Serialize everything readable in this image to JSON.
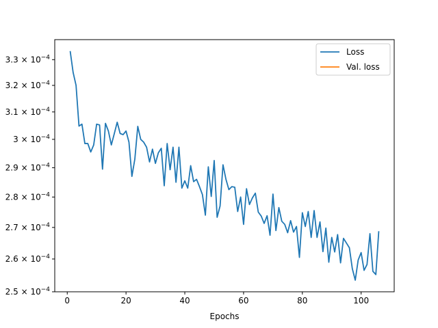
{
  "chart_data": {
    "type": "line",
    "title": "",
    "xlabel": "Epochs",
    "ylabel": "",
    "yscale": "log",
    "xlim": [
      -4.25,
      111.25
    ],
    "ylim": [
      0.00025,
      0.000338
    ],
    "x_ticks": [
      0,
      20,
      40,
      60,
      80,
      100
    ],
    "x_tick_labels": [
      "0",
      "20",
      "40",
      "60",
      "80",
      "100"
    ],
    "y_ticks": [
      0.00025,
      0.00026,
      0.00027,
      0.00028,
      0.00029,
      0.0003,
      0.00031,
      0.00032,
      0.00033
    ],
    "y_tick_labels": [
      {
        "mant": "2.5",
        "exp": "-4"
      },
      {
        "mant": "2.6",
        "exp": "-4"
      },
      {
        "mant": "2.7",
        "exp": "-4"
      },
      {
        "mant": "2.8",
        "exp": "-4"
      },
      {
        "mant": "2.9",
        "exp": "-4"
      },
      {
        "mant": "3",
        "exp": "-4"
      },
      {
        "mant": "3.1",
        "exp": "-4"
      },
      {
        "mant": "3.2",
        "exp": "-4"
      },
      {
        "mant": "3.3",
        "exp": "-4"
      }
    ],
    "grid": false,
    "legend_position": "top-right",
    "series": [
      {
        "name": "Loss",
        "color": "#1f77b4",
        "x": [
          1,
          2,
          3,
          4,
          5,
          6,
          7,
          8,
          9,
          10,
          11,
          12,
          13,
          14,
          15,
          16,
          17,
          18,
          19,
          20,
          21,
          22,
          23,
          24,
          25,
          26,
          27,
          28,
          29,
          30,
          31,
          32,
          33,
          34,
          35,
          36,
          37,
          38,
          39,
          40,
          41,
          42,
          43,
          44,
          45,
          46,
          47,
          48,
          49,
          50,
          51,
          52,
          53,
          54,
          55,
          56,
          57,
          58,
          59,
          60,
          61,
          62,
          63,
          64,
          65,
          66,
          67,
          68,
          69,
          70,
          71,
          72,
          73,
          74,
          75,
          76,
          77,
          78,
          79,
          80,
          81,
          82,
          83,
          84,
          85,
          86,
          87,
          88,
          89,
          90,
          91,
          92,
          93,
          94,
          95,
          96,
          97,
          98,
          99,
          100,
          101,
          102,
          103,
          104,
          105,
          106
        ],
        "values": [
          0.0003334,
          0.000325,
          0.00032,
          0.0003048,
          0.0003055,
          0.0002985,
          0.0002985,
          0.0002955,
          0.000298,
          0.0003055,
          0.0003052,
          0.0002895,
          0.0003058,
          0.000303,
          0.000298,
          0.000302,
          0.0003062,
          0.0003021,
          0.0003017,
          0.000303,
          0.000299,
          0.000287,
          0.000293,
          0.0003047,
          0.0003,
          0.000299,
          0.0002972,
          0.000292,
          0.0002965,
          0.0002915,
          0.0002952,
          0.0002968,
          0.0002838,
          0.0002985,
          0.0002893,
          0.0002972,
          0.000285,
          0.0002972,
          0.000283,
          0.0002855,
          0.000283,
          0.0002907,
          0.0002852,
          0.000286,
          0.0002835,
          0.0002808,
          0.000274,
          0.0002903,
          0.0002802,
          0.0002925,
          0.0002733,
          0.000277,
          0.000291,
          0.000286,
          0.0002825,
          0.0002835,
          0.0002833,
          0.0002752,
          0.00028,
          0.000271,
          0.0002828,
          0.0002775,
          0.0002797,
          0.0002813,
          0.000275,
          0.0002737,
          0.0002713,
          0.0002738,
          0.0002675,
          0.000281,
          0.000269,
          0.0002765,
          0.000272,
          0.000271,
          0.0002683,
          0.0002722,
          0.0002685,
          0.0002703,
          0.0002605,
          0.0002748,
          0.0002703,
          0.0002752,
          0.0002668,
          0.0002755,
          0.0002668,
          0.0002718,
          0.0002623,
          0.0002698,
          0.000259,
          0.0002668,
          0.0002622,
          0.0002677,
          0.0002588,
          0.0002665,
          0.000265,
          0.0002635,
          0.000257,
          0.0002535,
          0.0002597,
          0.000262,
          0.0002565,
          0.0002583,
          0.000268,
          0.0002562,
          0.0002552,
          0.0002688
        ]
      },
      {
        "name": "Val. loss",
        "color": "#ff7f0e",
        "x": [],
        "values": []
      }
    ]
  }
}
